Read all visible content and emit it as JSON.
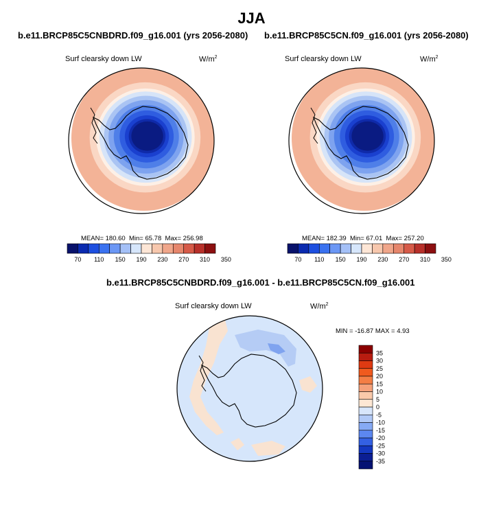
{
  "figure": {
    "title": "JJA",
    "variable_label": "Surf clearsky down LW",
    "units": "W/m",
    "units_sup": "2"
  },
  "panels": [
    {
      "title": "b.e11.BRCP85C5CNBDRD.f09_g16.001 (yrs 2056-2080)",
      "mean": "MEAN= 180.60",
      "min": "Min=  65.78",
      "max": "Max= 256.98"
    },
    {
      "title": "b.e11.BRCP85C5CN.f09_g16.001 (yrs 2056-2080)",
      "mean": "MEAN= 182.39",
      "min": "Min=  67.01",
      "max": "Max= 257.20"
    }
  ],
  "diff_panel": {
    "title": "b.e11.BRCP85C5CNBDRD.f09_g16.001 - b.e11.BRCP85C5CN.f09_g16.001",
    "stats": "MIN = -16.87 MAX =   4.93"
  },
  "colorbar_main": {
    "colors": [
      "#08126b",
      "#0a2ab0",
      "#1d4fe0",
      "#3a72f0",
      "#6b97f5",
      "#a4c0f7",
      "#d6e6fb",
      "#fde6d6",
      "#f7c7ad",
      "#f0a68a",
      "#e6866c",
      "#d65a48",
      "#b8302a",
      "#8c0f10"
    ],
    "labels": [
      "70",
      "110",
      "150",
      "190",
      "230",
      "270",
      "310",
      "350"
    ]
  },
  "colorbar_diff": {
    "colors": [
      "#8b0000",
      "#b81c10",
      "#df3a12",
      "#f05a1e",
      "#f47e45",
      "#f5a17a",
      "#fac9aa",
      "#fde7d4",
      "#d8e6fb",
      "#b1c9f7",
      "#86aaf5",
      "#5c87f0",
      "#3461e3",
      "#1438c0",
      "#0b1e93",
      "#051273"
    ],
    "labels": [
      "35",
      "30",
      "25",
      "20",
      "15",
      "10",
      "5",
      "0",
      "-5",
      "-10",
      "-15",
      "-20",
      "-25",
      "-30",
      "-35"
    ]
  },
  "map_fields": {
    "left": [
      [
        "#f3b397",
        0
      ],
      [
        "#fad7c4",
        28
      ],
      [
        "#fdf0e6",
        38
      ],
      [
        "#d6e4f8",
        43
      ],
      [
        "#aac4f3",
        50
      ],
      [
        "#7ea3ef",
        57
      ],
      [
        "#4f7fe8",
        65
      ],
      [
        "#2f5de0",
        74
      ],
      [
        "#1a40cf",
        82
      ],
      [
        "#0f2aa9",
        88
      ],
      [
        "#0a1b82",
        92
      ]
    ],
    "right": [
      [
        "#f3b397",
        0
      ],
      [
        "#fad7c4",
        28
      ],
      [
        "#fdf0e6",
        38
      ],
      [
        "#d6e4f8",
        43
      ],
      [
        "#aac4f3",
        50
      ],
      [
        "#7ea3ef",
        57
      ],
      [
        "#4f7fe8",
        65
      ],
      [
        "#2f5de0",
        74
      ],
      [
        "#1a40cf",
        82
      ],
      [
        "#0f2aa9",
        88
      ],
      [
        "#0a1b82",
        92
      ]
    ]
  }
}
